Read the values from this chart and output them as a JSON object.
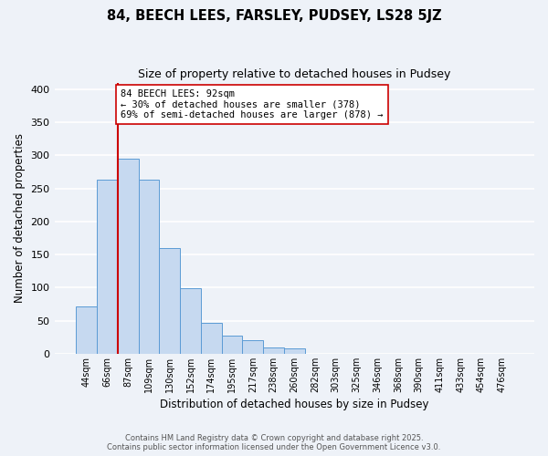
{
  "title": "84, BEECH LEES, FARSLEY, PUDSEY, LS28 5JZ",
  "subtitle": "Size of property relative to detached houses in Pudsey",
  "xlabel": "Distribution of detached houses by size in Pudsey",
  "ylabel": "Number of detached properties",
  "bar_color": "#c6d9f0",
  "bar_edge_color": "#5b9bd5",
  "background_color": "#eef2f8",
  "categories": [
    "44sqm",
    "66sqm",
    "87sqm",
    "109sqm",
    "130sqm",
    "152sqm",
    "174sqm",
    "195sqm",
    "217sqm",
    "238sqm",
    "260sqm",
    "282sqm",
    "303sqm",
    "325sqm",
    "346sqm",
    "368sqm",
    "390sqm",
    "411sqm",
    "433sqm",
    "454sqm",
    "476sqm"
  ],
  "values": [
    72,
    263,
    295,
    263,
    160,
    99,
    47,
    27,
    20,
    10,
    8,
    0,
    0,
    0,
    0,
    0,
    0,
    0,
    0,
    0,
    0
  ],
  "vline_index": 2,
  "vline_color": "#cc0000",
  "annotation_text": "84 BEECH LEES: 92sqm\n← 30% of detached houses are smaller (378)\n69% of semi-detached houses are larger (878) →",
  "annotation_box_facecolor": "white",
  "annotation_box_edgecolor": "#cc0000",
  "ylim": [
    0,
    410
  ],
  "yticks": [
    0,
    50,
    100,
    150,
    200,
    250,
    300,
    350,
    400
  ],
  "footnote1": "Contains HM Land Registry data © Crown copyright and database right 2025.",
  "footnote2": "Contains public sector information licensed under the Open Government Licence v3.0."
}
